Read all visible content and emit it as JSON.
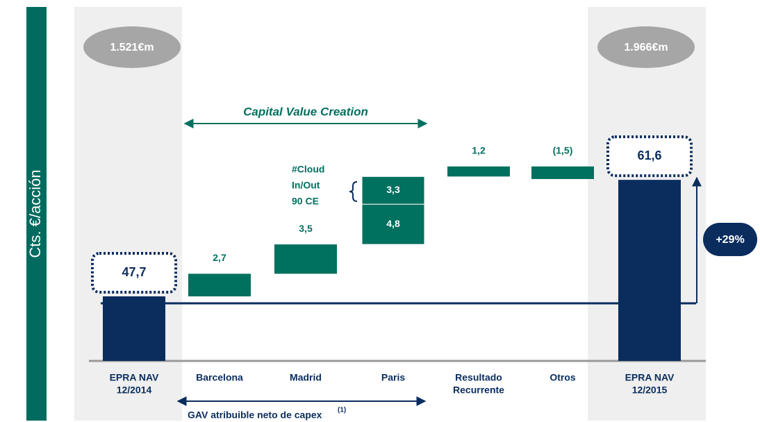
{
  "chart_data": {
    "type": "waterfall",
    "y_axis_label": "Cts. €/acción",
    "categories": [
      [
        "EPRA NAV",
        "12/2014"
      ],
      [
        "Barcelona"
      ],
      [
        "Madrid"
      ],
      [
        "Paris"
      ],
      [
        "Resultado",
        "Recurrente"
      ],
      [
        "Otros"
      ],
      [
        "EPRA NAV",
        "12/2015"
      ]
    ],
    "measure": [
      "absolute",
      "relative",
      "relative",
      "relative",
      "relative",
      "relative",
      "total"
    ],
    "values": [
      47.7,
      2.7,
      3.5,
      [
        4.8,
        3.3
      ],
      1.2,
      -1.5,
      61.6
    ],
    "value_labels": [
      "47,7",
      "2,7",
      "3,5",
      [
        "4,8",
        "3,3"
      ],
      "1,2",
      "(1,5)",
      "61,6"
    ],
    "ylim": [
      40,
      66
    ],
    "color": "#00705f",
    "total_color": "#0a2d5e",
    "totals_in_eur": [
      "1.521€m",
      "1.966€m"
    ],
    "bracket_top": "Capital Value Creation",
    "bracket_bottom": "GAV atribuible neto de capex",
    "bracket_bottom_note": "(1)",
    "segment_note": [
      "#Cloud",
      "In/Out",
      "90 CE"
    ],
    "growth": "+29%"
  }
}
